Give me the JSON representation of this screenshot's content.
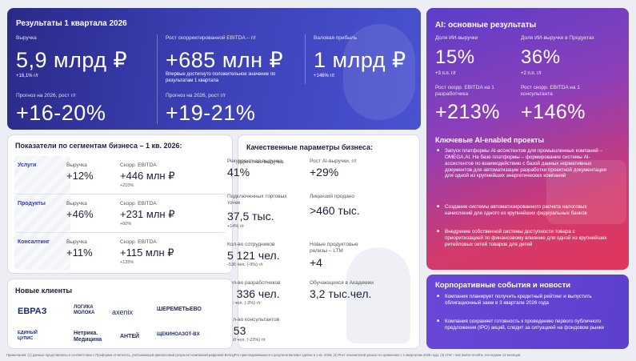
{
  "q1": {
    "title": "Результаты 1 квартала 2026",
    "revenue_label": "Выручка",
    "revenue_value": "5,9 млрд ₽",
    "revenue_growth": "+16,1% г/г",
    "ebitda_label": "Рост скорректированной EBITDA – г/г",
    "ebitda_value": "+685 млн ₽",
    "ebitda_note": "Впервые достигнуто положительное значение по результатам 1 квартала",
    "gross_label": "Валовая прибыль",
    "gross_value": "1 млрд ₽",
    "gross_growth": "+146% г/г",
    "forecast_rev_label": "Прогноз на 2026, рост г/г",
    "forecast_rev_value": "+16-20%",
    "forecast_ebitda_label": "Прогноз на 2026, рост г/г",
    "forecast_ebitda_value": "+19-21%"
  },
  "ai": {
    "title": "AI: основные результаты",
    "share_label": "Доля ИИ-выручки",
    "share_value": "15%",
    "share_growth": "+3 п.п. г/г",
    "products_label": "Доля ИИ-выручки в Продуктах",
    "products_value": "36%",
    "products_growth": "+2 п.п. г/г",
    "dev_label": "Рост скорр. EBITDA на 1 разработчика",
    "dev_value": "+213%",
    "cons_label": "Рост скорр. EBITDA на 1 консультанта",
    "cons_value": "+146%",
    "projects_title": "Ключевые AI-enabled проекты",
    "projects": [
      "Запуск платформы AI-ассистентов для промышленных компаний – OMEGA.AI. На базе платформы – формирование системы AI-ассистентов по взаимодействию с базой данных нормативных документов для автоматизации разработки проектной документации для одной из крупнейших энергетических компаний",
      "Создание системы автоматизированного расчета налоговых начислений для одного из крупнейших федеральных банков",
      "Внедрение собственной системы доступности товара с приоритизацией по финансовому влиянию для одной из крупнейших ритейловых сетей товаров для детей"
    ]
  },
  "segments": {
    "title": "Показатели по сегментам бизнеса – 1 кв. 2026:",
    "rows": [
      {
        "name": "Услуги",
        "rev_label": "Выручка",
        "rev_value": "+12%",
        "ebitda_label": "Скорр. EBITDA",
        "ebitda_value": "+446 млн ₽",
        "ebitda_growth": "+210%"
      },
      {
        "name": "Продукты",
        "rev_label": "Выручка",
        "rev_value": "+46%",
        "ebitda_label": "Скорр. EBITDA",
        "ebitda_value": "+231 млн ₽",
        "ebitda_growth": "+60%"
      },
      {
        "name": "Консалтинг",
        "rev_label": "Выручка",
        "rev_value": "+11%",
        "ebitda_label": "Скорр. EBITDA",
        "ebitda_value": "+115 млн ₽",
        "ebitda_growth": "+135%"
      }
    ]
  },
  "quality": {
    "title": "Качественные параметры бизнеса:",
    "recurring_label": "Рекуррентная выручка",
    "recurring_value": "41%",
    "ai_growth_label": "Рост AI-выручки, г/г",
    "ai_growth_value": "+29%",
    "points_label": "Подключенных торговых точек",
    "points_value": "37,5 тыс.",
    "points_growth": "+14% г/г",
    "licenses_label": "Лицензий продано",
    "licenses_value": ">460 тыс.",
    "staff_label": "Кол-во сотрудников",
    "staff_value": "5 121 чел.",
    "staff_growth": "-536 чел. (-9%) г/г",
    "releases_label": "Новые продуктовые релизы – LTM",
    "releases_value": "+4",
    "devs_label": "Кол-во разработчиков",
    "devs_value": "3 336 чел.",
    "devs_growth": "-96 чел. (-3%) г/г",
    "academy_label": "Обучающихся в Академии",
    "academy_value": "3,2 тыс.чел.",
    "consultants_label": "Кол-во консультантов",
    "consultants_value": "553",
    "consultants_growth": "-160 чел. (-23%) г/г"
  },
  "clients": {
    "title": "Новые клиенты",
    "logos": [
      "ЕВРАЗ",
      "ЛОГИКА МОЛОКА",
      "axenix",
      "ШЕРЕМЕТЬЕВО",
      "ЕДИНЫЙ ЦУПИС",
      "Нетрика. Медицина",
      "АНТЕЙ",
      "ЩЕКИНОАЗОТ-BX"
    ]
  },
  "corporate": {
    "title": "Корпоративные события и новости",
    "items": [
      "Компания планирует получить кредитный рейтинг и выпустить облигационный заем в 3 квартале 2026 года",
      "Компания сохраняет готовность к проведению первого публичного предложения (IPO) акций, следит за ситуацией на фондовом рынке"
    ]
  },
  "footnote": "Примечания: (1) данные представлены в соответствии с Проформа отчетность, учитывающей финансовый результат компании/Цифровой BeringPro присоединившихся к результатам M&A сделки в 1 кв. 2026; (2) Рост показателей указан по сравнению с 1 кварталом 2025 года; (3) LTM – last twelve months, последние 12 месяцев."
}
